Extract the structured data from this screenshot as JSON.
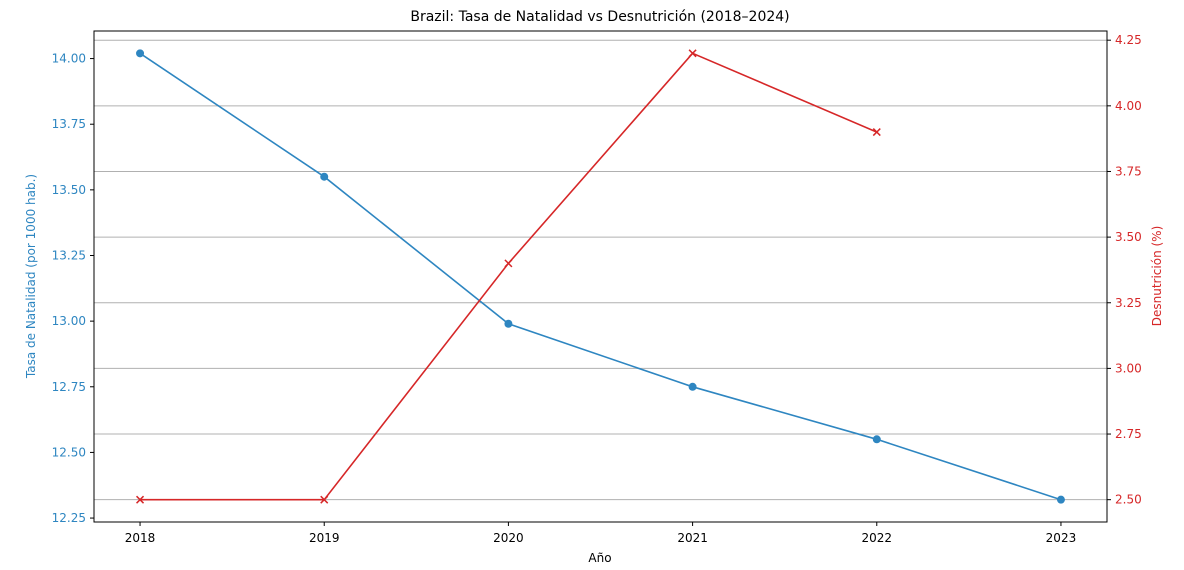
{
  "chart_data": {
    "type": "line",
    "title": "Brazil: Tasa de Natalidad vs Desnutrición (2018–2024)",
    "xlabel": "Año",
    "x": [
      2018,
      2019,
      2020,
      2021,
      2022,
      2023
    ],
    "x_tick_labels": [
      "2018",
      "2019",
      "2020",
      "2021",
      "2022",
      "2023"
    ],
    "xlim": [
      2017.75,
      2023.25
    ],
    "grid": "horizontal (right axis)",
    "series": [
      {
        "axis": "left",
        "color": "#2e86c1",
        "marker": "circle",
        "values": [
          14.02,
          13.55,
          12.99,
          12.75,
          12.55,
          12.32
        ]
      },
      {
        "axis": "right",
        "color": "#d62728",
        "marker": "x",
        "values": [
          2.5,
          2.5,
          3.4,
          4.2,
          3.9,
          null
        ]
      }
    ],
    "y_left": {
      "label": "Tasa de Natalidad (por 1000 hab.)",
      "color": "#2e86c1",
      "lim": [
        12.235,
        14.105
      ],
      "ticks": [
        12.25,
        12.5,
        12.75,
        13.0,
        13.25,
        13.5,
        13.75,
        14.0
      ],
      "tick_labels": [
        "12.25",
        "12.50",
        "12.75",
        "13.00",
        "13.25",
        "13.50",
        "13.75",
        "14.00"
      ]
    },
    "y_right": {
      "label": "Desnutrición (%)",
      "color": "#d62728",
      "lim": [
        2.415,
        4.285
      ],
      "ticks": [
        2.5,
        2.75,
        3.0,
        3.25,
        3.5,
        3.75,
        4.0,
        4.25
      ],
      "tick_labels": [
        "2.50",
        "2.75",
        "3.00",
        "3.25",
        "3.50",
        "3.75",
        "4.00",
        "4.25"
      ]
    }
  }
}
